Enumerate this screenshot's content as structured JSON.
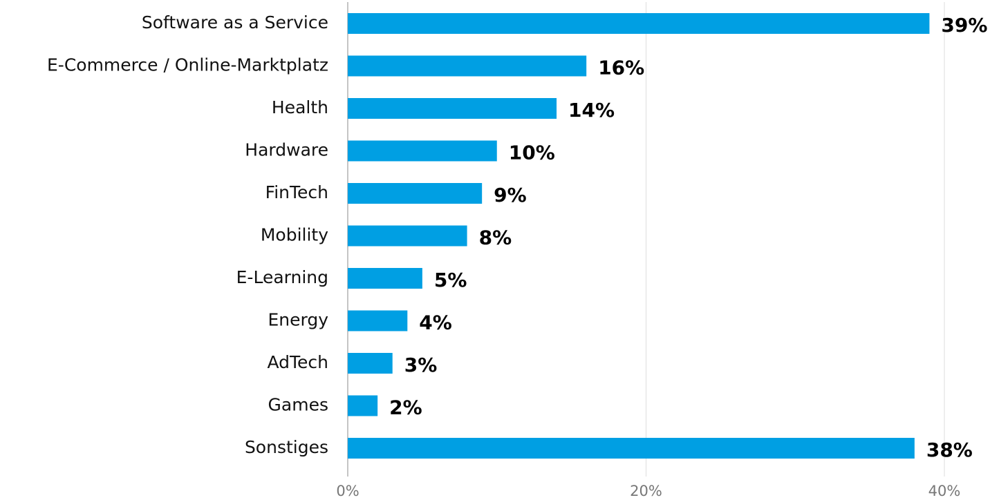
{
  "chart_data": {
    "type": "bar",
    "orientation": "horizontal",
    "categories": [
      "Software as a Service",
      "E-Commerce / Online-Marktplatz",
      "Health",
      "Hardware",
      "FinTech",
      "Mobility",
      "E-Learning",
      "Energy",
      "AdTech",
      "Games",
      "Sonstiges"
    ],
    "values": [
      39,
      16,
      14,
      10,
      9,
      8,
      5,
      4,
      3,
      2,
      38
    ],
    "value_labels": [
      "39%",
      "16%",
      "14%",
      "10%",
      "9%",
      "8%",
      "5%",
      "4%",
      "3%",
      "2%",
      "38%"
    ],
    "color": "#009fe3",
    "xlim": [
      0,
      40
    ],
    "xticks": [
      {
        "value": 0,
        "label": "0%"
      },
      {
        "value": 20,
        "label": "20%"
      },
      {
        "value": 40,
        "label": "40%"
      }
    ],
    "grid": true
  }
}
